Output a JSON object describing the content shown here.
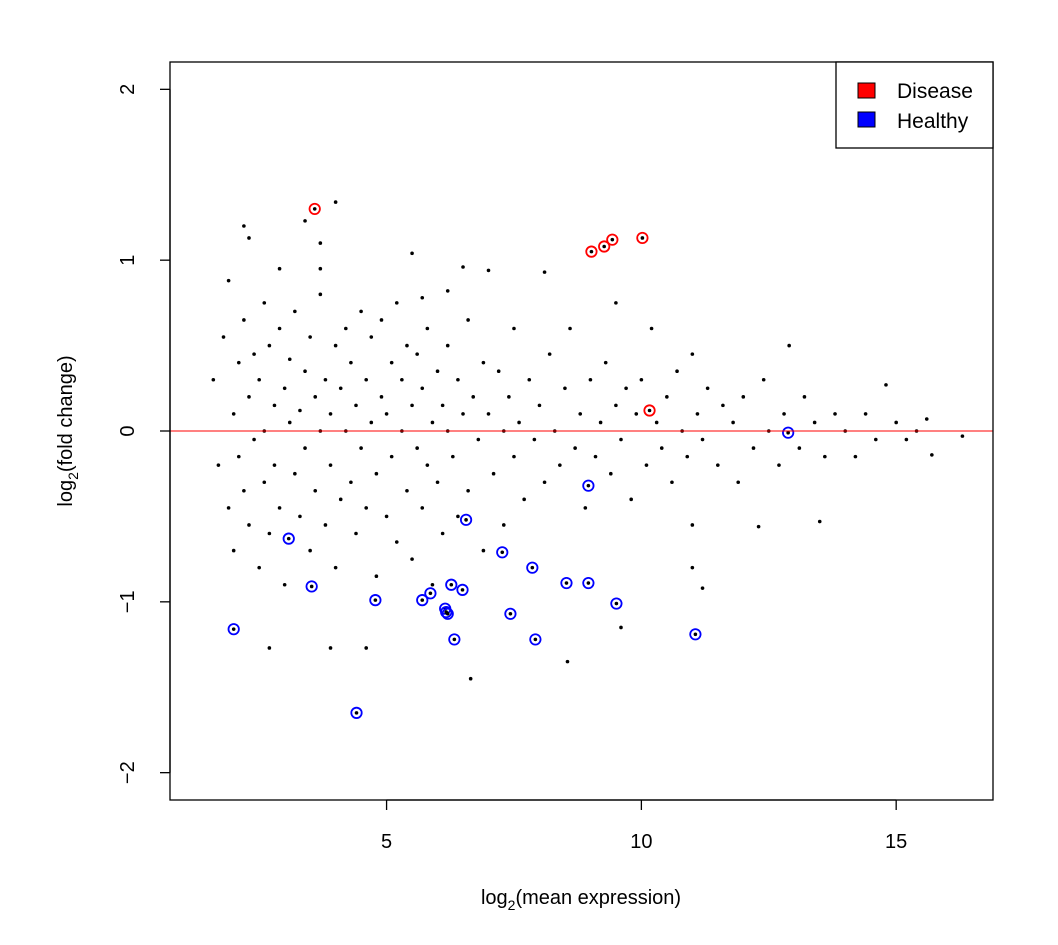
{
  "chart_data": {
    "type": "scatter",
    "title": "",
    "xlabel": {
      "prefix": "log",
      "sub": "2",
      "suffix": "(mean expression)"
    },
    "ylabel": {
      "prefix": "log",
      "sub": "2",
      "suffix": "(fold change)"
    },
    "xlim": [
      0.75,
      16.9
    ],
    "ylim": [
      -2.16,
      2.16
    ],
    "xticks": [
      5,
      10,
      15
    ],
    "yticks": [
      -2,
      -1,
      0,
      1,
      2
    ],
    "xtick_labels": [
      "5",
      "10",
      "15"
    ],
    "ytick_labels": [
      "−2",
      "−1",
      "0",
      "1",
      "2"
    ],
    "grid": false,
    "reference_line": {
      "y": 0,
      "color": "#ff0000"
    },
    "legend": {
      "placement": "top-right",
      "entries": [
        {
          "label": "Disease",
          "color": "#ff0000"
        },
        {
          "label": "Healthy",
          "color": "#0000ff"
        }
      ]
    },
    "series": [
      {
        "marker": "dot",
        "color": "#000000",
        "points": [
          [
            3.4,
            1.23
          ],
          [
            4.0,
            1.34
          ],
          [
            3.7,
            1.1
          ],
          [
            2.2,
            1.2
          ],
          [
            2.3,
            1.13
          ],
          [
            3.9,
            -1.27
          ],
          [
            4.6,
            -1.27
          ],
          [
            2.7,
            -1.27
          ],
          [
            6.65,
            -1.45
          ],
          [
            8.55,
            -1.35
          ],
          [
            13.5,
            -0.53
          ],
          [
            16.3,
            -0.03
          ],
          [
            15.7,
            -0.14
          ],
          [
            15.6,
            0.07
          ],
          [
            14.8,
            0.27
          ],
          [
            12.3,
            -0.56
          ],
          [
            8.1,
            0.93
          ],
          [
            7.0,
            0.94
          ],
          [
            11.0,
            -0.55
          ],
          [
            11.0,
            -0.8
          ],
          [
            11.2,
            -0.92
          ],
          [
            9.6,
            -1.15
          ],
          [
            5.5,
            1.04
          ],
          [
            6.5,
            0.96
          ],
          [
            6.2,
            0.82
          ],
          [
            5.7,
            0.78
          ],
          [
            3.7,
            0.95
          ],
          [
            2.9,
            0.95
          ],
          [
            1.9,
            0.88
          ],
          [
            2.6,
            0.75
          ],
          [
            1.6,
            0.3
          ],
          [
            1.7,
            -0.2
          ],
          [
            1.8,
            0.55
          ],
          [
            1.9,
            -0.45
          ],
          [
            2.0,
            0.1
          ],
          [
            2.0,
            -0.7
          ],
          [
            2.1,
            0.4
          ],
          [
            2.1,
            -0.15
          ],
          [
            2.2,
            0.65
          ],
          [
            2.2,
            -0.35
          ],
          [
            2.3,
            0.2
          ],
          [
            2.3,
            -0.55
          ],
          [
            2.4,
            0.45
          ],
          [
            2.4,
            -0.05
          ],
          [
            2.5,
            0.3
          ],
          [
            2.5,
            -0.8
          ],
          [
            2.6,
            0.0
          ],
          [
            2.6,
            -0.3
          ],
          [
            2.7,
            0.5
          ],
          [
            2.7,
            -0.6
          ],
          [
            2.8,
            0.15
          ],
          [
            2.8,
            -0.2
          ],
          [
            2.9,
            0.6
          ],
          [
            2.9,
            -0.45
          ],
          [
            3.0,
            0.25
          ],
          [
            3.0,
            -0.9
          ],
          [
            3.1,
            0.05
          ],
          [
            3.1,
            0.42
          ],
          [
            3.2,
            -0.25
          ],
          [
            3.2,
            0.7
          ],
          [
            3.3,
            -0.5
          ],
          [
            3.3,
            0.12
          ],
          [
            3.4,
            0.35
          ],
          [
            3.4,
            -0.1
          ],
          [
            3.5,
            0.55
          ],
          [
            3.5,
            -0.7
          ],
          [
            3.6,
            0.2
          ],
          [
            3.6,
            -0.35
          ],
          [
            3.7,
            0.0
          ],
          [
            3.7,
            0.8
          ],
          [
            3.8,
            -0.55
          ],
          [
            3.8,
            0.3
          ],
          [
            3.9,
            0.1
          ],
          [
            3.9,
            -0.2
          ],
          [
            4.0,
            0.5
          ],
          [
            4.0,
            -0.8
          ],
          [
            4.1,
            0.25
          ],
          [
            4.1,
            -0.4
          ],
          [
            4.2,
            0.6
          ],
          [
            4.2,
            0.0
          ],
          [
            4.3,
            -0.3
          ],
          [
            4.3,
            0.4
          ],
          [
            4.4,
            0.15
          ],
          [
            4.4,
            -0.6
          ],
          [
            4.5,
            0.7
          ],
          [
            4.5,
            -0.1
          ],
          [
            4.6,
            0.3
          ],
          [
            4.6,
            -0.45
          ],
          [
            4.7,
            0.05
          ],
          [
            4.7,
            0.55
          ],
          [
            4.8,
            -0.25
          ],
          [
            4.8,
            -0.85
          ],
          [
            4.9,
            0.2
          ],
          [
            4.9,
            0.65
          ],
          [
            5.0,
            -0.5
          ],
          [
            5.0,
            0.1
          ],
          [
            5.1,
            0.4
          ],
          [
            5.1,
            -0.15
          ],
          [
            5.2,
            0.75
          ],
          [
            5.2,
            -0.65
          ],
          [
            5.3,
            0.0
          ],
          [
            5.3,
            0.3
          ],
          [
            5.4,
            -0.35
          ],
          [
            5.4,
            0.5
          ],
          [
            5.5,
            0.15
          ],
          [
            5.5,
            -0.75
          ],
          [
            5.6,
            -0.1
          ],
          [
            5.6,
            0.45
          ],
          [
            5.7,
            0.25
          ],
          [
            5.7,
            -0.45
          ],
          [
            5.8,
            0.6
          ],
          [
            5.8,
            -0.2
          ],
          [
            5.9,
            0.05
          ],
          [
            5.9,
            -0.9
          ],
          [
            6.0,
            0.35
          ],
          [
            6.0,
            -0.3
          ],
          [
            6.1,
            0.15
          ],
          [
            6.1,
            -0.6
          ],
          [
            6.2,
            0.5
          ],
          [
            6.2,
            0.0
          ],
          [
            6.3,
            -0.15
          ],
          [
            6.4,
            0.3
          ],
          [
            6.4,
            -0.5
          ],
          [
            6.5,
            0.1
          ],
          [
            6.6,
            0.65
          ],
          [
            6.6,
            -0.35
          ],
          [
            6.7,
            0.2
          ],
          [
            6.8,
            -0.05
          ],
          [
            6.9,
            0.4
          ],
          [
            6.9,
            -0.7
          ],
          [
            7.0,
            0.1
          ],
          [
            7.1,
            -0.25
          ],
          [
            7.2,
            0.35
          ],
          [
            7.3,
            0.0
          ],
          [
            7.3,
            -0.55
          ],
          [
            7.4,
            0.2
          ],
          [
            7.5,
            0.6
          ],
          [
            7.5,
            -0.15
          ],
          [
            7.6,
            0.05
          ],
          [
            7.7,
            -0.4
          ],
          [
            7.8,
            0.3
          ],
          [
            7.9,
            -0.05
          ],
          [
            8.0,
            0.15
          ],
          [
            8.1,
            -0.3
          ],
          [
            8.2,
            0.45
          ],
          [
            8.3,
            0.0
          ],
          [
            8.4,
            -0.2
          ],
          [
            8.5,
            0.25
          ],
          [
            8.6,
            0.6
          ],
          [
            8.7,
            -0.1
          ],
          [
            8.8,
            0.1
          ],
          [
            8.9,
            -0.45
          ],
          [
            9.0,
            0.3
          ],
          [
            9.1,
            -0.15
          ],
          [
            9.2,
            0.05
          ],
          [
            9.3,
            0.4
          ],
          [
            9.4,
            -0.25
          ],
          [
            9.5,
            0.75
          ],
          [
            9.5,
            0.15
          ],
          [
            9.6,
            -0.05
          ],
          [
            9.7,
            0.25
          ],
          [
            9.8,
            -0.4
          ],
          [
            9.9,
            0.1
          ],
          [
            10.0,
            0.3
          ],
          [
            10.1,
            -0.2
          ],
          [
            10.2,
            0.6
          ],
          [
            10.3,
            0.05
          ],
          [
            10.4,
            -0.1
          ],
          [
            10.5,
            0.2
          ],
          [
            10.6,
            -0.3
          ],
          [
            10.7,
            0.35
          ],
          [
            10.8,
            0.0
          ],
          [
            10.9,
            -0.15
          ],
          [
            11.0,
            0.45
          ],
          [
            11.1,
            0.1
          ],
          [
            11.2,
            -0.05
          ],
          [
            11.3,
            0.25
          ],
          [
            11.5,
            -0.2
          ],
          [
            11.6,
            0.15
          ],
          [
            11.8,
            0.05
          ],
          [
            11.9,
            -0.3
          ],
          [
            12.0,
            0.2
          ],
          [
            12.2,
            -0.1
          ],
          [
            12.4,
            0.3
          ],
          [
            12.5,
            0.0
          ],
          [
            12.7,
            -0.2
          ],
          [
            12.8,
            0.1
          ],
          [
            12.9,
            0.5
          ],
          [
            13.1,
            -0.1
          ],
          [
            13.2,
            0.2
          ],
          [
            13.4,
            0.05
          ],
          [
            13.6,
            -0.15
          ],
          [
            13.8,
            0.1
          ],
          [
            14.0,
            0.0
          ],
          [
            14.2,
            -0.15
          ],
          [
            14.4,
            0.1
          ],
          [
            14.6,
            -0.05
          ],
          [
            15.0,
            0.05
          ],
          [
            15.2,
            -0.05
          ],
          [
            15.4,
            0.0
          ]
        ]
      },
      {
        "name": "Disease",
        "marker": "circle",
        "color": "#ff0000",
        "points": [
          [
            3.59,
            1.3
          ],
          [
            9.02,
            1.05
          ],
          [
            9.27,
            1.08
          ],
          [
            9.43,
            1.12
          ],
          [
            10.02,
            1.13
          ],
          [
            10.16,
            0.12
          ]
        ]
      },
      {
        "name": "Healthy",
        "marker": "circle",
        "color": "#0000ff",
        "points": [
          [
            2.0,
            -1.16
          ],
          [
            3.08,
            -0.63
          ],
          [
            3.53,
            -0.91
          ],
          [
            4.41,
            -1.65
          ],
          [
            4.78,
            -0.99
          ],
          [
            5.7,
            -0.99
          ],
          [
            5.86,
            -0.95
          ],
          [
            6.15,
            -1.04
          ],
          [
            6.17,
            -1.06
          ],
          [
            6.2,
            -1.07
          ],
          [
            6.27,
            -0.9
          ],
          [
            6.33,
            -1.22
          ],
          [
            6.49,
            -0.93
          ],
          [
            6.56,
            -0.52
          ],
          [
            7.27,
            -0.71
          ],
          [
            7.43,
            -1.07
          ],
          [
            7.86,
            -0.8
          ],
          [
            7.92,
            -1.22
          ],
          [
            8.53,
            -0.89
          ],
          [
            8.96,
            -0.32
          ],
          [
            8.96,
            -0.89
          ],
          [
            9.51,
            -1.01
          ],
          [
            11.06,
            -1.19
          ],
          [
            12.88,
            -0.01
          ]
        ]
      }
    ]
  }
}
